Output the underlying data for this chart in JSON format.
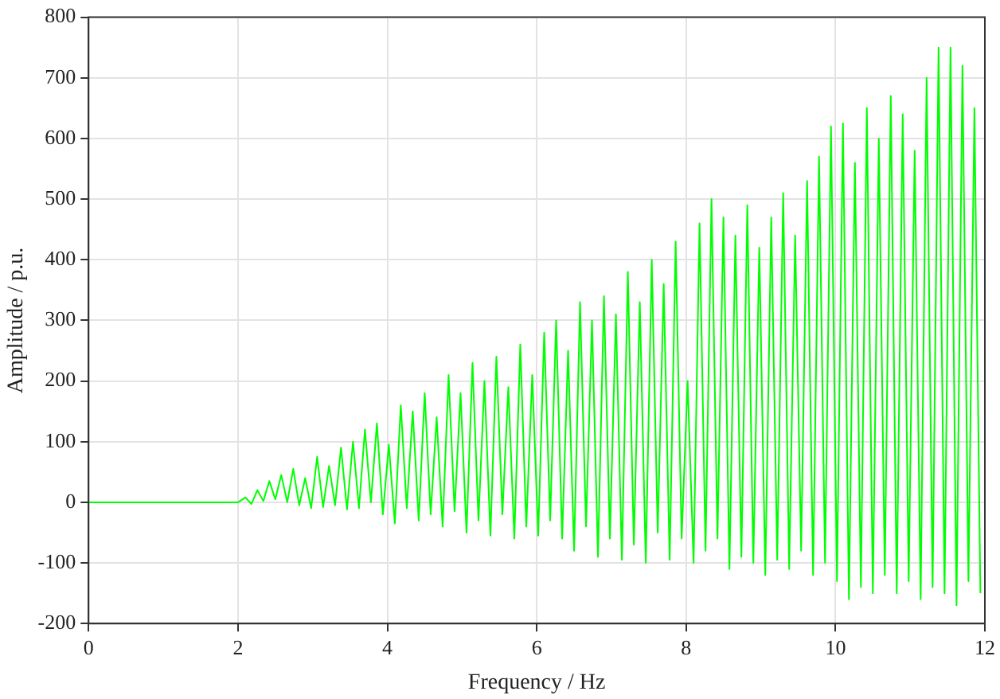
{
  "chart_data": {
    "type": "line",
    "xlabel": "Frequency / Hz",
    "ylabel": "Amplitude / p.u.",
    "x": [
      0,
      2.0,
      2.1,
      2.18,
      2.26,
      2.34,
      2.42,
      2.5,
      2.58,
      2.66,
      2.74,
      2.82,
      2.9,
      2.98,
      3.06,
      3.14,
      3.22,
      3.3,
      3.38,
      3.46,
      3.54,
      3.62,
      3.7,
      3.78,
      3.86,
      3.94,
      4.02,
      4.1,
      4.18,
      4.26,
      4.34,
      4.42,
      4.5,
      4.58,
      4.66,
      4.74,
      4.82,
      4.9,
      4.98,
      5.06,
      5.14,
      5.22,
      5.3,
      5.38,
      5.46,
      5.54,
      5.62,
      5.7,
      5.78,
      5.86,
      5.94,
      6.02,
      6.1,
      6.18,
      6.26,
      6.34,
      6.42,
      6.5,
      6.58,
      6.66,
      6.74,
      6.82,
      6.9,
      6.98,
      7.06,
      7.14,
      7.22,
      7.3,
      7.38,
      7.46,
      7.54,
      7.62,
      7.7,
      7.78,
      7.86,
      7.94,
      8.02,
      8.1,
      8.18,
      8.26,
      8.34,
      8.42,
      8.5,
      8.58,
      8.66,
      8.74,
      8.82,
      8.9,
      8.98,
      9.06,
      9.14,
      9.22,
      9.3,
      9.38,
      9.46,
      9.54,
      9.62,
      9.7,
      9.78,
      9.86,
      9.94,
      10.02,
      10.1,
      10.18,
      10.26,
      10.34,
      10.42,
      10.5,
      10.58,
      10.66,
      10.74,
      10.82,
      10.9,
      10.98,
      11.06,
      11.14,
      11.22,
      11.3,
      11.38,
      11.46,
      11.54,
      11.62,
      11.7,
      11.78,
      11.86,
      11.94
    ],
    "series": [
      {
        "color": "#00ff00",
        "values": [
          0,
          0,
          8,
          -3,
          20,
          2,
          35,
          5,
          45,
          0,
          55,
          -5,
          40,
          -10,
          75,
          -8,
          60,
          -5,
          90,
          -12,
          100,
          -10,
          120,
          0,
          130,
          -20,
          95,
          -35,
          160,
          -10,
          150,
          -30,
          180,
          -20,
          140,
          -40,
          210,
          -15,
          180,
          -50,
          230,
          -30,
          200,
          -55,
          240,
          -20,
          190,
          -60,
          260,
          -40,
          210,
          -55,
          280,
          -30,
          300,
          -60,
          250,
          -80,
          330,
          -40,
          300,
          -90,
          340,
          -60,
          310,
          -95,
          380,
          -70,
          330,
          -100,
          400,
          -50,
          360,
          -95,
          430,
          -60,
          200,
          -100,
          460,
          -80,
          500,
          -60,
          470,
          -110,
          440,
          -90,
          490,
          -100,
          420,
          -120,
          470,
          -95,
          510,
          -110,
          440,
          -80,
          530,
          -120,
          570,
          -100,
          620,
          -130,
          625,
          -160,
          560,
          -140,
          650,
          -150,
          600,
          -120,
          670,
          -150,
          640,
          -130,
          580,
          -160,
          700,
          -140,
          750,
          -150,
          750,
          -170,
          720,
          -130,
          650,
          -150
        ]
      }
    ],
    "xlim": [
      0,
      12
    ],
    "ylim": [
      -200,
      800
    ],
    "xticks": [
      0,
      2,
      4,
      6,
      8,
      10,
      12
    ],
    "yticks": [
      -200,
      -100,
      0,
      100,
      200,
      300,
      400,
      500,
      600,
      700,
      800
    ],
    "grid": true,
    "legend": false,
    "marker": "none",
    "line_style": "solid"
  }
}
